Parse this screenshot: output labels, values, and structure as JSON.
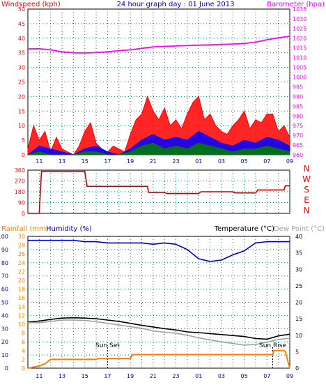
{
  "chart_data": [
    {
      "type": "line",
      "title": "24 hour graph day : 01 June 2013",
      "left_axis_label": "Windspeed (kph)",
      "right_axis_label": "Barometer (hpa)",
      "x_ticks": [
        "11",
        "13",
        "15",
        "17",
        "19",
        "21",
        "23",
        "01",
        "03",
        "05",
        "07",
        "09"
      ],
      "left_ylim": [
        0,
        50
      ],
      "left_ticks": [
        "0",
        "5",
        "10",
        "15",
        "20",
        "25",
        "30",
        "35",
        "40",
        "45",
        "50"
      ],
      "right_ylim": [
        960,
        1035
      ],
      "right_ticks": [
        "960",
        "965",
        "970",
        "975",
        "980",
        "985",
        "990",
        "995",
        "1000",
        "1005",
        "1010",
        "1015",
        "1020",
        "1025",
        "1030",
        "1035"
      ],
      "grid": true,
      "series": [
        {
          "key": "gust",
          "color": "#ff0000",
          "x": [
            10,
            10.5,
            11,
            11.5,
            12,
            12.5,
            13,
            13.5,
            14,
            14.5,
            15,
            15.5,
            16,
            16.5,
            17,
            17.5,
            18,
            18.5,
            19,
            19.5,
            20,
            20.5,
            21,
            21.5,
            22,
            22.5,
            23,
            23.5,
            24,
            24.5,
            25,
            25.5,
            26,
            26.5,
            27,
            27.5,
            28,
            28.5,
            29,
            29.5,
            30,
            30.5,
            31,
            31.5,
            32,
            32.5,
            33
          ],
          "y": [
            2,
            10,
            5,
            8,
            1,
            6,
            2,
            1,
            0,
            3,
            8,
            11,
            4,
            2,
            1,
            3,
            2,
            1,
            7,
            12,
            14,
            20,
            15,
            12,
            16,
            10,
            12,
            9,
            14,
            18,
            20,
            12,
            14,
            10,
            8,
            7,
            10,
            12,
            15,
            9,
            12,
            11,
            14,
            14,
            8,
            10,
            6
          ]
        },
        {
          "key": "avg",
          "color": "#0000ff",
          "x": [
            10,
            11,
            12,
            13,
            14,
            15,
            16,
            17,
            18,
            19,
            20,
            21,
            22,
            23,
            24,
            25,
            26,
            27,
            28,
            29,
            30,
            31,
            32,
            33
          ],
          "y": [
            0,
            3,
            2,
            1,
            0,
            2,
            3,
            1,
            0,
            2,
            5,
            7,
            5,
            6,
            5,
            8,
            6,
            4,
            3,
            5,
            4,
            6,
            5,
            3
          ]
        },
        {
          "key": "direction_fill",
          "color": "#008000",
          "x": [
            10,
            11,
            12,
            13,
            14,
            15,
            16,
            17,
            18,
            19,
            20,
            21,
            22,
            23,
            24,
            25,
            26,
            27,
            28,
            29,
            30,
            31,
            32,
            33
          ],
          "y": [
            0,
            1,
            0,
            0,
            0,
            1,
            1,
            0,
            0,
            1,
            3,
            4,
            2,
            3,
            2,
            4,
            3,
            2,
            1,
            2,
            2,
            3,
            2,
            1
          ]
        },
        {
          "key": "barometer",
          "color": "#ff00ff",
          "x": [
            10,
            11,
            12,
            13,
            14,
            15,
            16,
            17,
            18,
            19,
            20,
            21,
            22,
            23,
            24,
            25,
            26,
            27,
            28,
            29,
            30,
            31,
            32,
            33
          ],
          "y": [
            1014.5,
            1014.6,
            1014.0,
            1013.0,
            1012.5,
            1012.4,
            1012.6,
            1013.0,
            1013.6,
            1014.0,
            1014.8,
            1015.5,
            1015.8,
            1016.0,
            1016.2,
            1016.4,
            1016.6,
            1016.8,
            1017.0,
            1017.3,
            1018.0,
            1019.2,
            1020.2,
            1021.0
          ]
        }
      ]
    },
    {
      "type": "line",
      "right_labels": [
        "N",
        "W",
        "S",
        "E",
        "N"
      ],
      "y_ticks": [
        "0",
        "90",
        "180",
        "270",
        "360"
      ],
      "ylim": [
        0,
        360
      ],
      "series": [
        {
          "key": "wind_direction",
          "color": "#c00000",
          "x": [
            10,
            11,
            11.2,
            15,
            15.2,
            20.5,
            20.6,
            22,
            22.2,
            25,
            25.2,
            28,
            28.2,
            30,
            30.2,
            32.5,
            32.6,
            33
          ],
          "y": [
            0,
            0,
            350,
            350,
            225,
            225,
            175,
            175,
            165,
            165,
            180,
            180,
            170,
            170,
            195,
            195,
            230,
            230
          ]
        }
      ]
    },
    {
      "type": "line",
      "rain_label": "Rainfall (mm)",
      "humidity_label": "Humidity (%)",
      "temp_label": "Temperature (°C)",
      "dew_label": "Dew Point (°C)",
      "rain_ticks": [
        "0",
        "2",
        "4",
        "6",
        "8",
        "10",
        "12",
        "14",
        "16",
        "18",
        "20",
        "22",
        "24",
        "26",
        "28",
        "30"
      ],
      "hum_ticks": [
        "0",
        "10",
        "20",
        "30",
        "40",
        "50",
        "60",
        "70",
        "80",
        "90",
        "100"
      ],
      "temp_ticks": [
        "0",
        "5",
        "10",
        "15",
        "20",
        "25",
        "30",
        "35",
        "40"
      ],
      "rain_ylim": [
        0,
        30
      ],
      "hum_ylim": [
        0,
        100
      ],
      "temp_ylim": [
        0,
        40
      ],
      "x_ticks": [
        "11",
        "13",
        "15",
        "17",
        "19",
        "21",
        "23",
        "01",
        "03",
        "05",
        "07",
        "09"
      ],
      "annotations": [
        {
          "text": "Sun Set",
          "x": 17.0
        },
        {
          "text": "Sun Rise",
          "x": 31.5
        }
      ],
      "series": [
        {
          "key": "humidity",
          "color": "#0000c0",
          "x": [
            10,
            11,
            12,
            13,
            14,
            15,
            16,
            17,
            18,
            19,
            20,
            21,
            22,
            23,
            24,
            25,
            26,
            27,
            28,
            29,
            30,
            31,
            32,
            33
          ],
          "y": [
            97,
            97,
            97,
            97,
            97,
            96,
            96,
            95,
            95,
            95,
            95,
            94,
            95,
            94,
            90,
            83,
            81,
            82,
            86,
            89,
            95,
            96,
            96,
            96
          ]
        },
        {
          "key": "temperature",
          "color": "#000000",
          "x": [
            10,
            11,
            12,
            13,
            14,
            15,
            16,
            17,
            18,
            19,
            20,
            21,
            22,
            23,
            24,
            25,
            26,
            27,
            28,
            29,
            30,
            31,
            32,
            33
          ],
          "y": [
            14,
            14.3,
            14.8,
            15.2,
            15.3,
            15.2,
            15,
            14.6,
            14.2,
            13.6,
            13,
            12.5,
            12,
            11.6,
            11,
            10.8,
            10.5,
            10.2,
            9.9,
            9.6,
            9,
            8.8,
            9.8,
            10.3
          ]
        },
        {
          "key": "dewpoint",
          "color": "#a0a0a0",
          "x": [
            10,
            11,
            12,
            13,
            14,
            15,
            16,
            17,
            18,
            19,
            20,
            21,
            22,
            23,
            24,
            25,
            26,
            27,
            28,
            29,
            30,
            31,
            32,
            33
          ],
          "y": [
            13.8,
            13.8,
            14.2,
            14.6,
            14.6,
            14.5,
            14.1,
            13.6,
            13.1,
            12.6,
            12.1,
            11.3,
            10.9,
            10.6,
            10,
            9.2,
            8.6,
            8,
            7.5,
            7,
            7.2,
            7.9,
            8.7,
            9.1
          ]
        },
        {
          "key": "rainfall",
          "color": "#ff8000",
          "x": [
            10,
            11,
            11.5,
            12,
            16,
            16.2,
            17,
            19,
            19.2,
            28,
            31.5,
            31.6,
            32.5,
            32.6,
            33
          ],
          "y": [
            0,
            0.5,
            1,
            2,
            2,
            2.2,
            2.2,
            2.2,
            3.1,
            3.1,
            3.1,
            4,
            4,
            3.8,
            0
          ]
        }
      ]
    }
  ]
}
